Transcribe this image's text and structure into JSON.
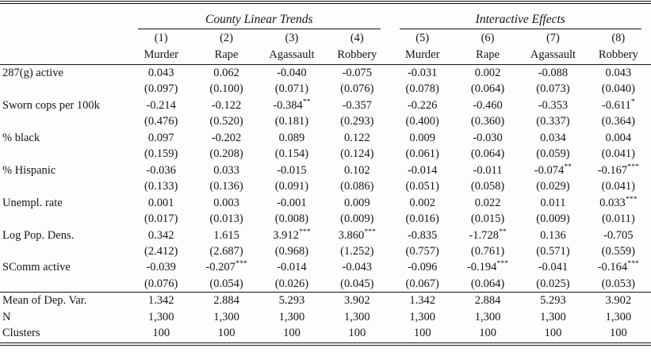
{
  "table": {
    "col_groups": [
      {
        "label": "County Linear Trends"
      },
      {
        "label": "Interactive Effects"
      }
    ],
    "col_numbers": [
      "(1)",
      "(2)",
      "(3)",
      "(4)",
      "(5)",
      "(6)",
      "(7)",
      "(8)"
    ],
    "col_names": [
      "Murder",
      "Rape",
      "Agassault",
      "Robbery",
      "Murder",
      "Rape",
      "Agassault",
      "Robbery"
    ],
    "coefficient_rows": [
      {
        "label": "287(g) active",
        "estimates": [
          "0.043",
          "0.062",
          "-0.040",
          "-0.075",
          "-0.031",
          "0.002",
          "-0.088",
          "0.043"
        ],
        "std_errors": [
          "(0.097)",
          "(0.100)",
          "(0.071)",
          "(0.076)",
          "(0.078)",
          "(0.064)",
          "(0.073)",
          "(0.040)"
        ]
      },
      {
        "label": "Sworn cops per 100k",
        "estimates": [
          "-0.214",
          "-0.122",
          "-0.384**",
          "-0.357",
          "-0.226",
          "-0.460",
          "-0.353",
          "-0.611*"
        ],
        "std_errors": [
          "(0.476)",
          "(0.520)",
          "(0.181)",
          "(0.293)",
          "(0.400)",
          "(0.360)",
          "(0.337)",
          "(0.364)"
        ]
      },
      {
        "label": "% black",
        "estimates": [
          "0.097",
          "-0.202",
          "0.089",
          "0.122",
          "0.009",
          "-0.030",
          "0.034",
          "0.004"
        ],
        "std_errors": [
          "(0.159)",
          "(0.208)",
          "(0.154)",
          "(0.124)",
          "(0.061)",
          "(0.064)",
          "(0.059)",
          "(0.041)"
        ]
      },
      {
        "label": "% Hispanic",
        "estimates": [
          "-0.036",
          "0.033",
          "-0.015",
          "0.102",
          "-0.014",
          "-0.011",
          "-0.074**",
          "-0.167***"
        ],
        "std_errors": [
          "(0.133)",
          "(0.136)",
          "(0.091)",
          "(0.086)",
          "(0.051)",
          "(0.058)",
          "(0.029)",
          "(0.041)"
        ]
      },
      {
        "label": "Unempl. rate",
        "estimates": [
          "0.001",
          "0.003",
          "-0.001",
          "0.009",
          "0.002",
          "0.022",
          "0.011",
          "0.033***"
        ],
        "std_errors": [
          "(0.017)",
          "(0.013)",
          "(0.008)",
          "(0.009)",
          "(0.016)",
          "(0.015)",
          "(0.009)",
          "(0.011)"
        ]
      },
      {
        "label": "Log Pop. Dens.",
        "estimates": [
          "0.342",
          "1.615",
          "3.912***",
          "3.860***",
          "-0.835",
          "-1.728**",
          "0.136",
          "-0.705"
        ],
        "std_errors": [
          "(2.412)",
          "(2.687)",
          "(0.968)",
          "(1.252)",
          "(0.757)",
          "(0.761)",
          "(0.571)",
          "(0.559)"
        ]
      },
      {
        "label": "SComm active",
        "estimates": [
          "-0.039",
          "-0.207***",
          "-0.014",
          "-0.043",
          "-0.096",
          "-0.194***",
          "-0.041",
          "-0.164***"
        ],
        "std_errors": [
          "(0.076)",
          "(0.054)",
          "(0.026)",
          "(0.045)",
          "(0.067)",
          "(0.064)",
          "(0.025)",
          "(0.053)"
        ]
      }
    ],
    "summary_rows": [
      {
        "label": "Mean of Dep. Var.",
        "values": [
          "1.342",
          "2.884",
          "5.293",
          "3.902",
          "1.342",
          "2.884",
          "5.293",
          "3.902"
        ]
      },
      {
        "label": "N",
        "values": [
          "1,300",
          "1,300",
          "1,300",
          "1,300",
          "1,300",
          "1,300",
          "1,300",
          "1,300"
        ]
      },
      {
        "label": "Clusters",
        "values": [
          "100",
          "100",
          "100",
          "100",
          "100",
          "100",
          "100",
          "100"
        ]
      }
    ]
  }
}
